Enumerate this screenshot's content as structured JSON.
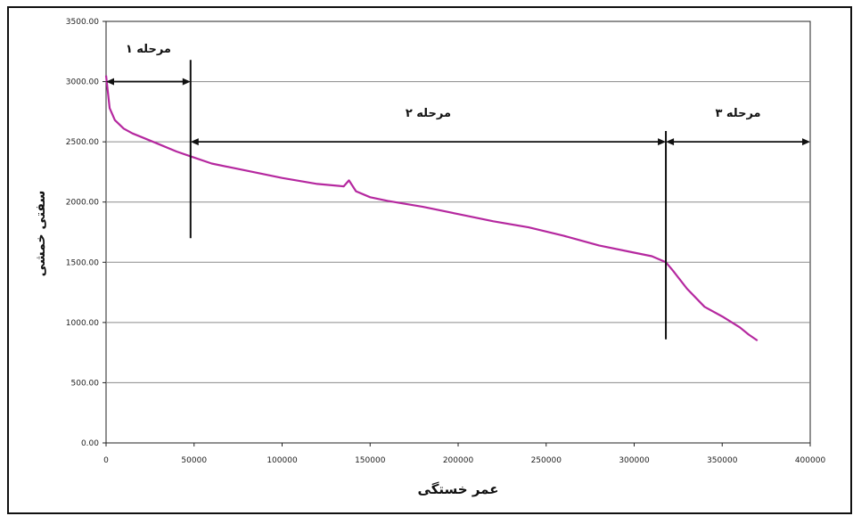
{
  "chart_data": {
    "type": "line",
    "title": "",
    "xlabel": "عمر خستگی",
    "ylabel": "سفتی خمشی",
    "xlim": [
      0,
      400000
    ],
    "ylim": [
      0,
      3500
    ],
    "x_ticks": [
      "0",
      "50000",
      "100000",
      "150000",
      "200000",
      "250000",
      "300000",
      "350000",
      "400000"
    ],
    "y_ticks": [
      "0.00",
      "500.00",
      "1000.00",
      "1500.00",
      "2000.00",
      "2500.00",
      "3000.00",
      "3500.00"
    ],
    "grid": "horizontal",
    "line_color": "#b5289f",
    "series": [
      {
        "x": [
          0,
          2000,
          5000,
          10000,
          15000,
          20000,
          30000,
          40000,
          48000,
          60000,
          80000,
          100000,
          120000,
          135000,
          138000,
          142000,
          150000,
          160000,
          180000,
          200000,
          220000,
          240000,
          260000,
          280000,
          300000,
          310000,
          318000,
          322000,
          330000,
          340000,
          350000,
          360000,
          365000,
          370000
        ],
        "values": [
          3050,
          2780,
          2680,
          2610,
          2570,
          2540,
          2480,
          2420,
          2380,
          2320,
          2260,
          2200,
          2150,
          2130,
          2180,
          2090,
          2040,
          2010,
          1960,
          1900,
          1840,
          1790,
          1720,
          1640,
          1580,
          1550,
          1500,
          1430,
          1280,
          1130,
          1050,
          960,
          900,
          850
        ]
      }
    ],
    "stages": [
      {
        "label": "مرحله ۱",
        "x_start": 0,
        "x_end": 48000
      },
      {
        "label": "مرحله ۲",
        "x_start": 48000,
        "x_end": 318000
      },
      {
        "label": "مرحله ۳",
        "x_start": 318000,
        "x_end": 400000
      }
    ],
    "stage_dividers": [
      48000,
      318000
    ]
  }
}
